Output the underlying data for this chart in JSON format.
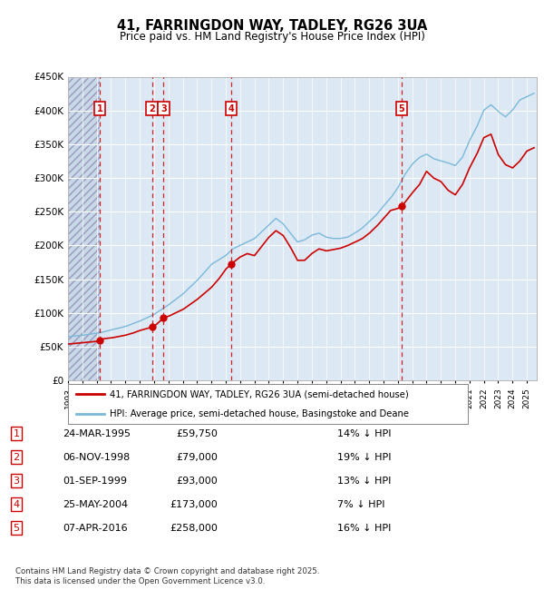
{
  "title_line1": "41, FARRINGDON WAY, TADLEY, RG26 3UA",
  "title_line2": "Price paid vs. HM Land Registry's House Price Index (HPI)",
  "legend_label_red": "41, FARRINGDON WAY, TADLEY, RG26 3UA (semi-detached house)",
  "legend_label_blue": "HPI: Average price, semi-detached house, Basingstoke and Deane",
  "footer": "Contains HM Land Registry data © Crown copyright and database right 2025.\nThis data is licensed under the Open Government Licence v3.0.",
  "ylim": [
    0,
    450000
  ],
  "yticks": [
    0,
    50000,
    100000,
    150000,
    200000,
    250000,
    300000,
    350000,
    400000,
    450000
  ],
  "ytick_labels": [
    "£0",
    "£50K",
    "£100K",
    "£150K",
    "£200K",
    "£250K",
    "£300K",
    "£350K",
    "£400K",
    "£450K"
  ],
  "xlim_start": 1993.0,
  "xlim_end": 2025.7,
  "xtick_years": [
    1993,
    1994,
    1995,
    1996,
    1997,
    1998,
    1999,
    2000,
    2001,
    2002,
    2003,
    2004,
    2005,
    2006,
    2007,
    2008,
    2009,
    2010,
    2011,
    2012,
    2013,
    2014,
    2015,
    2016,
    2017,
    2018,
    2019,
    2020,
    2021,
    2022,
    2023,
    2024,
    2025
  ],
  "sales": [
    {
      "num": 1,
      "date": "24-MAR-1995",
      "year": 1995.22,
      "price": 59750,
      "pct": "14%",
      "dir": "↓"
    },
    {
      "num": 2,
      "date": "06-NOV-1998",
      "year": 1998.85,
      "price": 79000,
      "pct": "19%",
      "dir": "↓"
    },
    {
      "num": 3,
      "date": "01-SEP-1999",
      "year": 1999.67,
      "price": 93000,
      "pct": "13%",
      "dir": "↓"
    },
    {
      "num": 4,
      "date": "25-MAY-2004",
      "year": 2004.4,
      "price": 173000,
      "pct": "7%",
      "dir": "↓"
    },
    {
      "num": 5,
      "date": "07-APR-2016",
      "year": 2016.27,
      "price": 258000,
      "pct": "16%",
      "dir": "↓"
    }
  ],
  "hatch_end_year": 1995.22,
  "bg_color": "#dce9f5",
  "hatch_color": "#c8d8e8",
  "grid_color": "#ffffff",
  "red_color": "#cc0000",
  "blue_color": "#7ab8d9",
  "sale_marker_color": "#cc0000",
  "hpi_anchors_x": [
    1993.0,
    1994.0,
    1995.0,
    1995.5,
    1996.0,
    1997.0,
    1998.0,
    1999.0,
    2000.0,
    2001.0,
    2002.0,
    2002.5,
    2003.0,
    2004.0,
    2004.5,
    2005.0,
    2006.0,
    2007.0,
    2007.5,
    2008.0,
    2008.5,
    2009.0,
    2009.5,
    2010.0,
    2010.5,
    2011.0,
    2011.5,
    2012.0,
    2012.5,
    2013.0,
    2013.5,
    2014.0,
    2014.5,
    2015.0,
    2015.5,
    2016.0,
    2016.5,
    2017.0,
    2017.5,
    2018.0,
    2018.5,
    2019.0,
    2019.5,
    2020.0,
    2020.5,
    2021.0,
    2021.5,
    2022.0,
    2022.5,
    2023.0,
    2023.5,
    2024.0,
    2024.5,
    2025.0,
    2025.5
  ],
  "hpi_anchors_y": [
    65000,
    67000,
    70000,
    72000,
    75000,
    80000,
    88000,
    98000,
    112000,
    128000,
    148000,
    160000,
    172000,
    185000,
    195000,
    200000,
    210000,
    230000,
    240000,
    232000,
    218000,
    205000,
    208000,
    215000,
    218000,
    212000,
    210000,
    210000,
    212000,
    218000,
    225000,
    235000,
    245000,
    258000,
    270000,
    285000,
    305000,
    320000,
    330000,
    335000,
    328000,
    325000,
    322000,
    318000,
    330000,
    355000,
    375000,
    400000,
    408000,
    398000,
    390000,
    400000,
    415000,
    420000,
    425000
  ],
  "red_anchors_x": [
    1993.0,
    1994.0,
    1995.0,
    1995.22,
    1995.5,
    1996.0,
    1997.0,
    1997.5,
    1998.0,
    1998.85,
    1999.0,
    1999.67,
    2000.0,
    2001.0,
    2002.0,
    2003.0,
    2003.5,
    2004.0,
    2004.4,
    2005.0,
    2005.5,
    2006.0,
    2007.0,
    2007.5,
    2008.0,
    2008.5,
    2009.0,
    2009.5,
    2010.0,
    2010.5,
    2011.0,
    2011.5,
    2012.0,
    2012.5,
    2013.0,
    2013.5,
    2014.0,
    2014.5,
    2015.0,
    2015.5,
    2016.0,
    2016.27,
    2017.0,
    2017.5,
    2018.0,
    2018.5,
    2019.0,
    2019.5,
    2020.0,
    2020.5,
    2021.0,
    2021.5,
    2022.0,
    2022.5,
    2023.0,
    2023.5,
    2024.0,
    2024.5,
    2025.0,
    2025.5
  ],
  "red_anchors_y": [
    54000,
    56000,
    58000,
    59750,
    62000,
    63000,
    67000,
    70000,
    74000,
    79000,
    80000,
    93000,
    95000,
    105000,
    120000,
    138000,
    150000,
    165000,
    173000,
    183000,
    188000,
    185000,
    212000,
    222000,
    215000,
    198000,
    178000,
    178000,
    188000,
    195000,
    192000,
    194000,
    196000,
    200000,
    205000,
    210000,
    218000,
    228000,
    240000,
    252000,
    255000,
    258000,
    278000,
    290000,
    310000,
    300000,
    295000,
    282000,
    275000,
    290000,
    315000,
    335000,
    360000,
    365000,
    335000,
    320000,
    315000,
    325000,
    340000,
    345000
  ]
}
